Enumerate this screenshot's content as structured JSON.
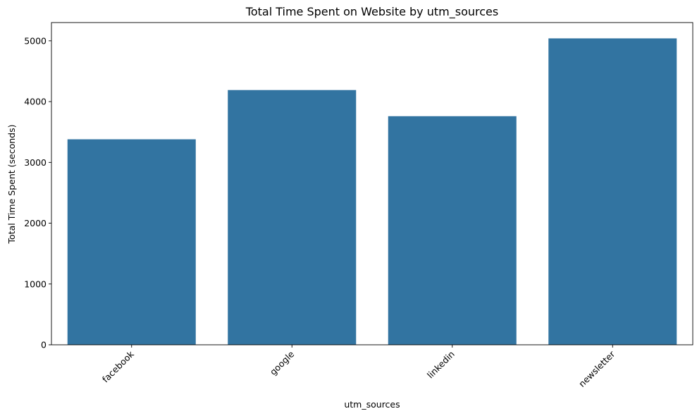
{
  "chart_data": {
    "type": "bar",
    "title": "Total Time Spent on Website by utm_sources",
    "xlabel": "utm_sources",
    "ylabel": "Total Time Spent (seconds)",
    "categories": [
      "facebook",
      "google",
      "linkedin",
      "newsletter"
    ],
    "values": [
      3380,
      4190,
      3760,
      5040
    ],
    "ylim": [
      0,
      5300
    ],
    "yticks": [
      0,
      1000,
      2000,
      3000,
      4000,
      5000
    ],
    "xtick_rotation_deg": 45,
    "grid": false,
    "bar_color": "#3274a1"
  }
}
